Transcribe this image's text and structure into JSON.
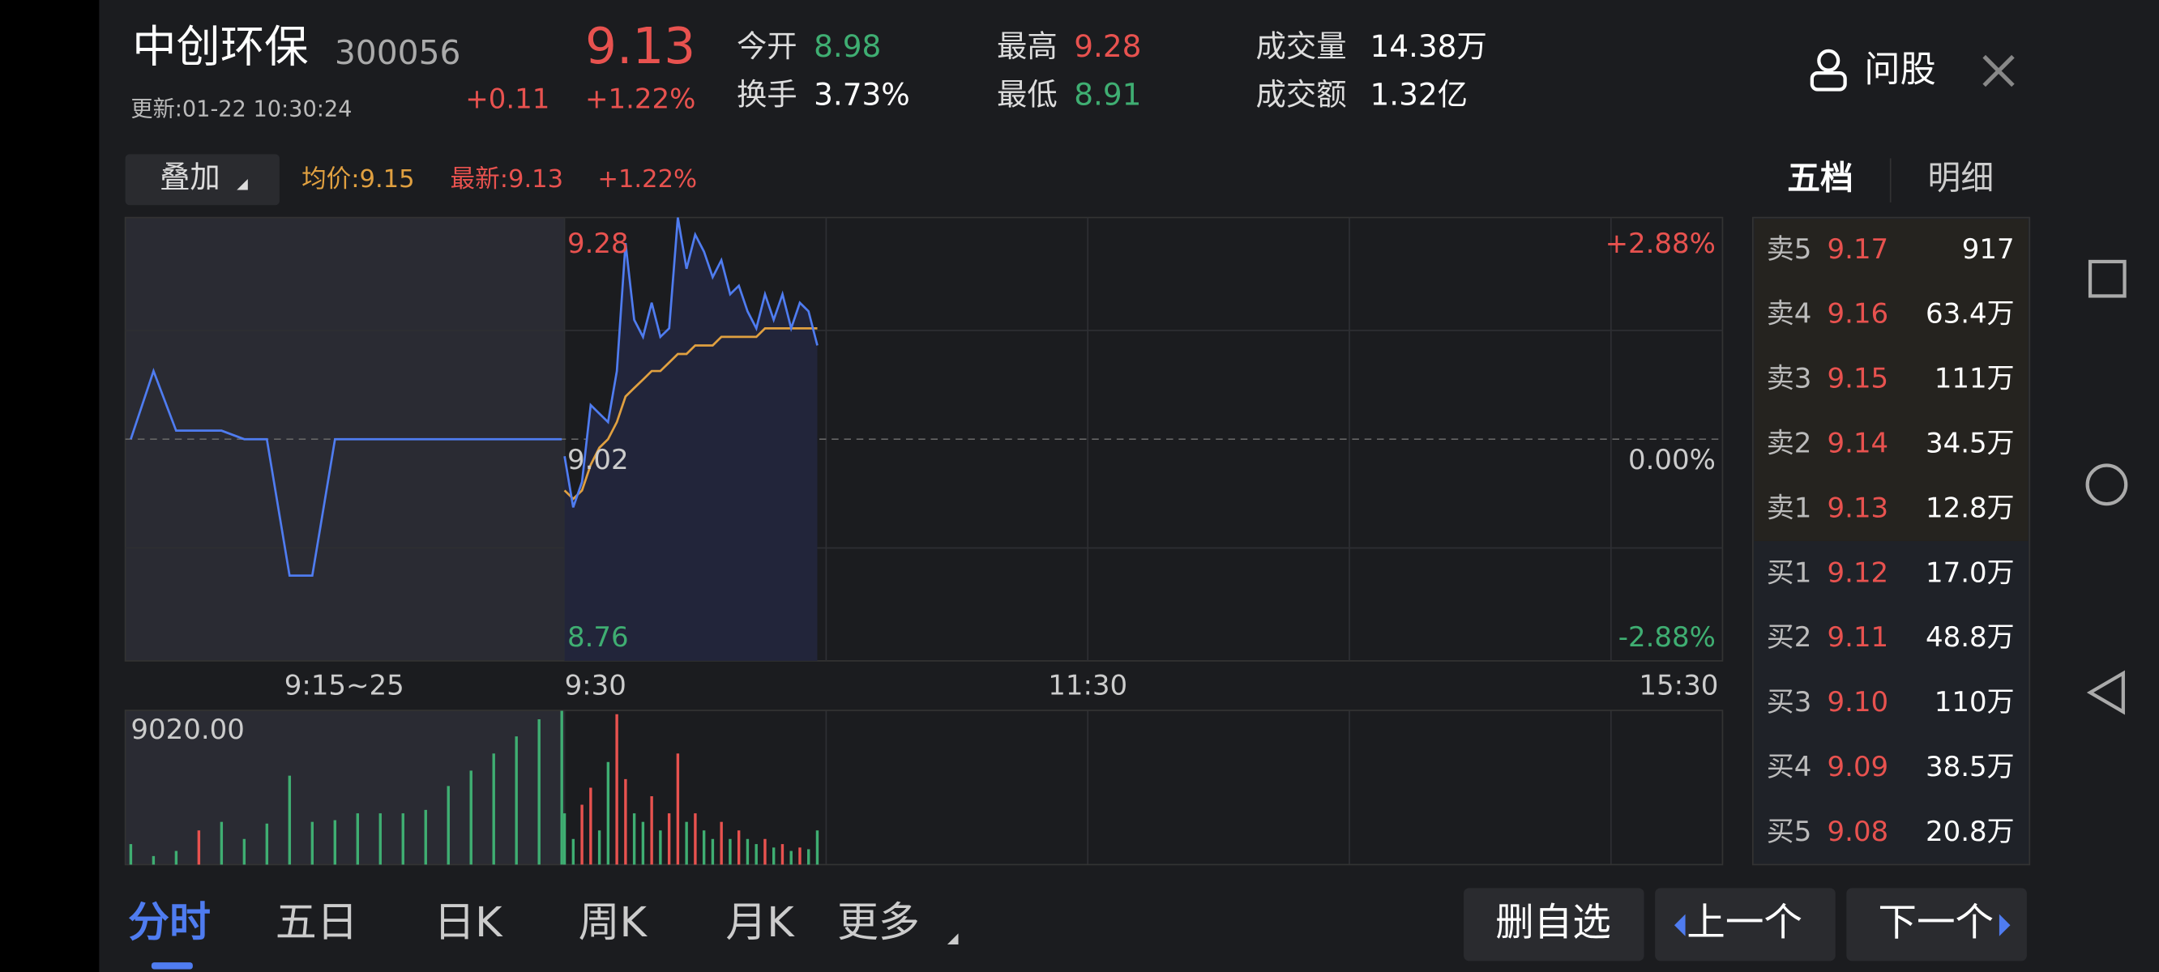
{
  "header": {
    "name": "中创环保",
    "code": "300056",
    "updated": "更新:01-22 10:30:24",
    "price": "9.13",
    "change": "+0.11",
    "change_pct": "+1.22%",
    "stats": [
      {
        "label": "今开",
        "value": "8.98",
        "color": "#3fae72"
      },
      {
        "label": "换手",
        "value": "3.73%",
        "color": "#ffffff"
      },
      {
        "label": "最高",
        "value": "9.28",
        "color": "#e8524f"
      },
      {
        "label": "最低",
        "value": "8.91",
        "color": "#3fae72"
      },
      {
        "label": "成交量",
        "value": "14.38万",
        "color": "#ffffff"
      },
      {
        "label": "成交额",
        "value": "1.32亿",
        "color": "#ffffff"
      }
    ],
    "ask_button": "问股"
  },
  "toolbar": {
    "overlay": "叠加",
    "avg": "均价:9.15",
    "latest": "最新:9.13",
    "pct": "+1.22%"
  },
  "order_book": {
    "tabs": [
      "五档",
      "明细"
    ],
    "rows": [
      {
        "label": "卖5",
        "price": "9.17",
        "volume": "917"
      },
      {
        "label": "卖4",
        "price": "9.16",
        "volume": "63.4万"
      },
      {
        "label": "卖3",
        "price": "9.15",
        "volume": "111万"
      },
      {
        "label": "卖2",
        "price": "9.14",
        "volume": "34.5万"
      },
      {
        "label": "卖1",
        "price": "9.13",
        "volume": "12.8万"
      },
      {
        "label": "买1",
        "price": "9.12",
        "volume": "17.0万"
      },
      {
        "label": "买2",
        "price": "9.11",
        "volume": "48.8万"
      },
      {
        "label": "买3",
        "price": "9.10",
        "volume": "110万"
      },
      {
        "label": "买4",
        "price": "9.09",
        "volume": "38.5万"
      },
      {
        "label": "买5",
        "price": "9.08",
        "volume": "20.8万"
      }
    ]
  },
  "chart": {
    "top": "9.28",
    "mid": "9.02",
    "bottom": "8.76",
    "top_pct": "+2.88%",
    "mid_pct": "0.00%",
    "bottom_pct": "-2.88%",
    "x_labels": [
      "9:15~25",
      "9:30",
      "11:30",
      "15:30"
    ],
    "volume_label": "9020.00",
    "ylim": [
      8.76,
      9.28
    ],
    "base": 9.02,
    "volume_lim": [
      0,
      9020
    ],
    "pre_price": [
      9.02,
      9.1,
      9.03,
      9.03,
      9.03,
      9.02,
      9.02,
      8.86,
      8.86,
      9.02,
      9.02,
      9.02,
      9.02,
      9.02,
      9.02,
      9.02,
      9.02,
      9.02,
      9.02,
      9.02
    ],
    "pre_volumes": [
      1200,
      500,
      800,
      2000,
      2500,
      1500,
      2400,
      5200,
      2500,
      2600,
      3000,
      3000,
      3000,
      3200,
      4600,
      5500,
      6500,
      7500,
      8500,
      9000
    ],
    "price": [
      9.0,
      8.94,
      8.97,
      9.06,
      9.05,
      9.04,
      9.1,
      9.25,
      9.16,
      9.14,
      9.18,
      9.14,
      9.15,
      9.28,
      9.22,
      9.26,
      9.24,
      9.21,
      9.23,
      9.19,
      9.2,
      9.17,
      9.15,
      9.19,
      9.16,
      9.19,
      9.15,
      9.18,
      9.17,
      9.13
    ],
    "avg": [
      8.96,
      8.95,
      8.96,
      8.99,
      9.01,
      9.02,
      9.04,
      9.07,
      9.08,
      9.09,
      9.1,
      9.1,
      9.11,
      9.12,
      9.12,
      9.13,
      9.13,
      9.13,
      9.14,
      9.14,
      9.14,
      9.14,
      9.14,
      9.15,
      9.15,
      9.15,
      9.15,
      9.15,
      9.15,
      9.15
    ],
    "volumes": [
      3000,
      1500,
      3500,
      4500,
      2000,
      6000,
      8800,
      5000,
      3000,
      2500,
      4000,
      2000,
      3000,
      6500,
      2500,
      3000,
      2000,
      1500,
      2500,
      1500,
      2000,
      1500,
      1200,
      1500,
      1000,
      1200,
      800,
      1000,
      900,
      2000
    ]
  },
  "tabs": [
    "分时",
    "五日",
    "日K",
    "周K",
    "月K",
    "更多"
  ],
  "buttons": [
    "删自选",
    "上一个",
    "下一个"
  ]
}
